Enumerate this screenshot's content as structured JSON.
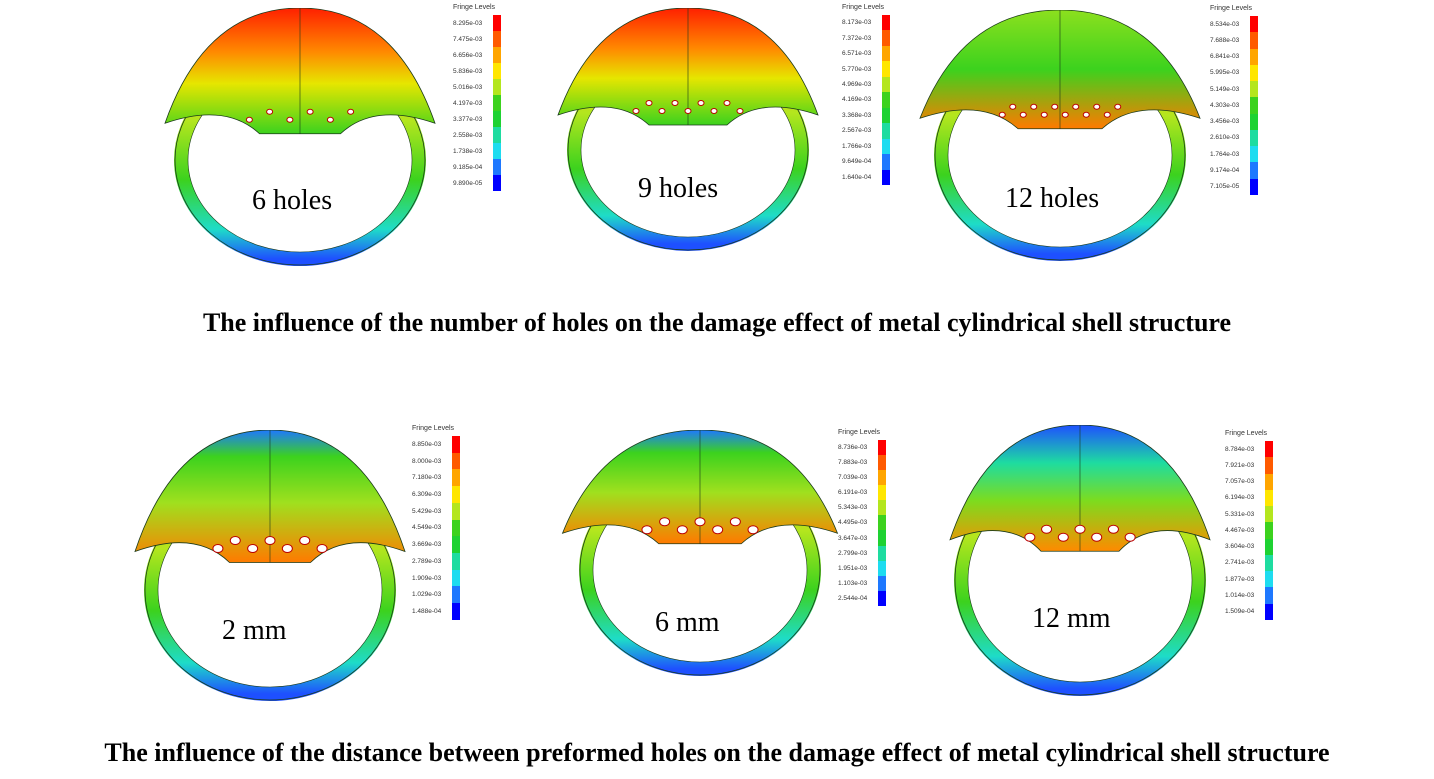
{
  "legend_title": "Fringe Levels",
  "legend_colors": [
    "#ff0000",
    "#ff5a00",
    "#ffa500",
    "#ffe600",
    "#b4e61e",
    "#3cd21e",
    "#1ed232",
    "#1edca0",
    "#1edcf0",
    "#1e78ff",
    "#0000ff"
  ],
  "top_row": {
    "caption": "The influence of the number of holes on the damage effect of metal cylindrical shell structure",
    "panels": [
      {
        "label": "6 holes",
        "levels": [
          "8.295e-03",
          "7.475e-03",
          "6.656e-03",
          "5.836e-03",
          "5.016e-03",
          "4.197e-03",
          "3.377e-03",
          "2.558e-03",
          "1.738e-03",
          "9.185e-04",
          "9.890e-05"
        ]
      },
      {
        "label": "9 holes",
        "levels": [
          "8.173e-03",
          "7.372e-03",
          "6.571e-03",
          "5.770e-03",
          "4.969e-03",
          "4.169e-03",
          "3.368e-03",
          "2.567e-03",
          "1.766e-03",
          "9.649e-04",
          "1.640e-04"
        ]
      },
      {
        "label": "12 holes",
        "levels": [
          "8.534e-03",
          "7.688e-03",
          "6.841e-03",
          "5.995e-03",
          "5.149e-03",
          "4.303e-03",
          "3.456e-03",
          "2.610e-03",
          "1.764e-03",
          "9.174e-04",
          "7.105e-05"
        ]
      }
    ]
  },
  "bottom_row": {
    "caption": "The influence of the distance between preformed holes on the damage effect of metal cylindrical shell structure",
    "panels": [
      {
        "label": "2 mm",
        "levels": [
          "8.850e-03",
          "8.000e-03",
          "7.180e-03",
          "6.309e-03",
          "5.429e-03",
          "4.549e-03",
          "3.669e-03",
          "2.789e-03",
          "1.909e-03",
          "1.029e-03",
          "1.488e-04"
        ]
      },
      {
        "label": "6 mm",
        "levels": [
          "8.736e-03",
          "7.883e-03",
          "7.039e-03",
          "6.191e-03",
          "5.343e-03",
          "4.495e-03",
          "3.647e-03",
          "2.799e-03",
          "1.951e-03",
          "1.103e-03",
          "2.544e-04"
        ]
      },
      {
        "label": "12 mm",
        "levels": [
          "8.784e-03",
          "7.921e-03",
          "7.057e-03",
          "6.194e-03",
          "5.331e-03",
          "4.467e-03",
          "3.604e-03",
          "2.741e-03",
          "1.877e-03",
          "1.014e-03",
          "1.509e-04"
        ]
      }
    ]
  }
}
